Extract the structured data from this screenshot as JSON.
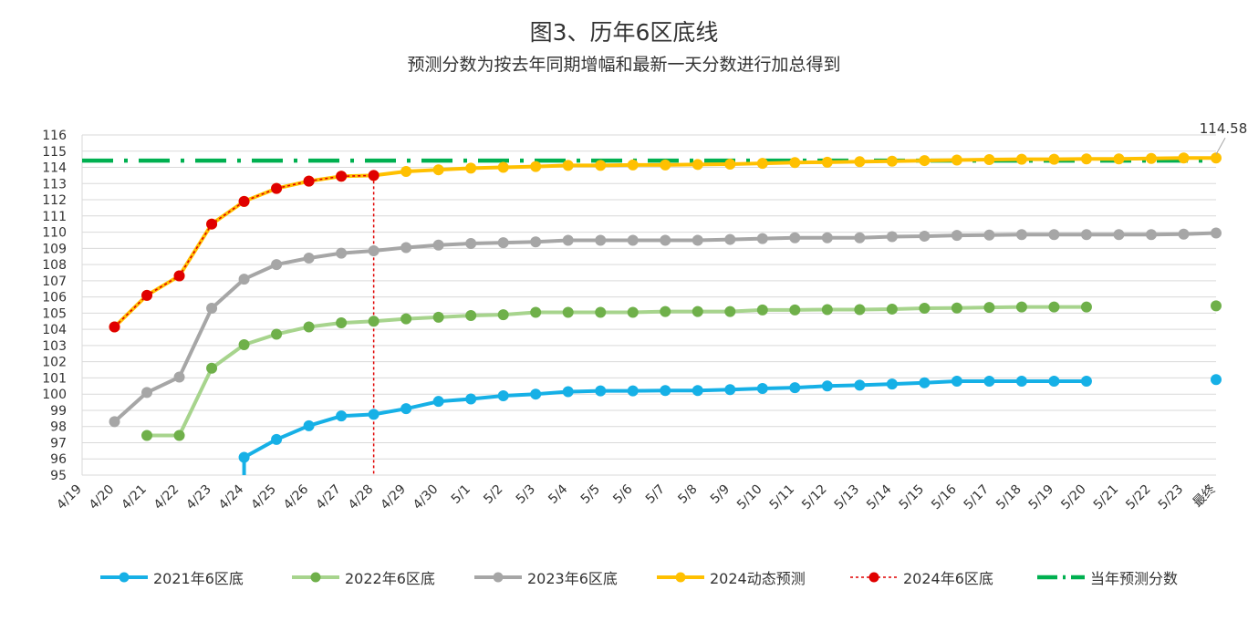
{
  "title": "图3、历年6区底线",
  "subtitle": "预测分数为按去年同期增幅和最新一天分数进行加总得到",
  "chart_data": {
    "type": "line",
    "categories": [
      "4/19",
      "4/20",
      "4/21",
      "4/22",
      "4/23",
      "4/24",
      "4/25",
      "4/26",
      "4/27",
      "4/28",
      "4/29",
      "4/30",
      "5/1",
      "5/2",
      "5/3",
      "5/4",
      "5/5",
      "5/6",
      "5/7",
      "5/8",
      "5/9",
      "5/10",
      "5/11",
      "5/12",
      "5/13",
      "5/14",
      "5/15",
      "5/16",
      "5/17",
      "5/18",
      "5/19",
      "5/20",
      "5/21",
      "5/22",
      "5/23",
      "最终"
    ],
    "ylim": [
      95,
      116
    ],
    "yticks": [
      95,
      96,
      97,
      98,
      99,
      100,
      101,
      102,
      103,
      104,
      105,
      106,
      107,
      108,
      109,
      110,
      111,
      112,
      113,
      114,
      115,
      116
    ],
    "grid": "horizontal",
    "legend_position": "bottom",
    "annotation": {
      "text": "114.58",
      "category": "最终",
      "value": 114.58
    },
    "vertical_marker": {
      "category": "4/28",
      "color": "#e00000"
    },
    "series": [
      {
        "name": "2021年6区底",
        "color": "#16b0e6",
        "width": 4,
        "dash": "",
        "marker": true,
        "values": [
          null,
          null,
          null,
          null,
          null,
          96.1,
          97.2,
          98.05,
          98.65,
          98.75,
          99.1,
          99.55,
          99.7,
          99.9,
          100.0,
          100.15,
          100.2,
          100.2,
          100.22,
          100.22,
          100.28,
          100.35,
          100.4,
          100.5,
          100.55,
          100.62,
          100.7,
          100.8,
          100.8,
          100.8,
          100.8,
          100.8,
          null,
          null,
          null,
          100.9
        ]
      },
      {
        "name": "2022年6区底",
        "color": "#a7d48d",
        "markerColor": "#6fb04a",
        "width": 4,
        "dash": "",
        "marker": true,
        "values": [
          null,
          null,
          97.45,
          97.45,
          101.6,
          103.05,
          103.7,
          104.15,
          104.4,
          104.5,
          104.65,
          104.75,
          104.85,
          104.9,
          105.05,
          105.05,
          105.05,
          105.05,
          105.1,
          105.1,
          105.1,
          105.2,
          105.2,
          105.22,
          105.22,
          105.25,
          105.3,
          105.32,
          105.35,
          105.38,
          105.38,
          105.38,
          null,
          null,
          null,
          105.45
        ]
      },
      {
        "name": "2023年6区底",
        "color": "#a6a6a6",
        "width": 4,
        "dash": "",
        "marker": true,
        "values": [
          null,
          98.3,
          100.1,
          101.05,
          105.3,
          107.1,
          108.0,
          108.4,
          108.7,
          108.85,
          109.05,
          109.2,
          109.3,
          109.35,
          109.4,
          109.5,
          109.5,
          109.5,
          109.5,
          109.5,
          109.55,
          109.6,
          109.65,
          109.65,
          109.65,
          109.72,
          109.75,
          109.8,
          109.82,
          109.85,
          109.85,
          109.85,
          109.85,
          109.85,
          109.88,
          109.95
        ]
      },
      {
        "name": "2024动态预测",
        "color": "#ffc000",
        "width": 4,
        "dash": "",
        "marker": true,
        "values": [
          null,
          104.15,
          106.1,
          107.3,
          110.5,
          111.9,
          112.7,
          113.15,
          113.45,
          113.5,
          113.75,
          113.85,
          113.95,
          114.0,
          114.05,
          114.12,
          114.12,
          114.15,
          114.15,
          114.18,
          114.2,
          114.25,
          114.3,
          114.32,
          114.35,
          114.38,
          114.42,
          114.45,
          114.48,
          114.5,
          114.5,
          114.52,
          114.52,
          114.55,
          114.58,
          114.58
        ]
      },
      {
        "name": "2024年6区底",
        "color": "#e00000",
        "width": 1.6,
        "dash": "3,3",
        "marker": true,
        "values": [
          null,
          104.15,
          106.1,
          107.3,
          110.5,
          111.9,
          112.7,
          113.15,
          113.45,
          113.5,
          null,
          null,
          null,
          null,
          null,
          null,
          null,
          null,
          null,
          null,
          null,
          null,
          null,
          null,
          null,
          null,
          null,
          null,
          null,
          null,
          null,
          null,
          null,
          null,
          null,
          null
        ]
      },
      {
        "name": "当年预测分数",
        "color": "#00b050",
        "width": 4.5,
        "dash": "34,12,4,12",
        "marker": false,
        "values": [
          114.42,
          114.42,
          114.42,
          114.42,
          114.42,
          114.42,
          114.42,
          114.42,
          114.42,
          114.42,
          114.42,
          114.42,
          114.42,
          114.42,
          114.42,
          114.42,
          114.42,
          114.42,
          114.42,
          114.42,
          114.42,
          114.42,
          114.42,
          114.42,
          114.42,
          114.42,
          114.42,
          114.42,
          114.42,
          114.42,
          114.42,
          114.42,
          114.42,
          114.42,
          114.42,
          114.42
        ]
      }
    ]
  }
}
